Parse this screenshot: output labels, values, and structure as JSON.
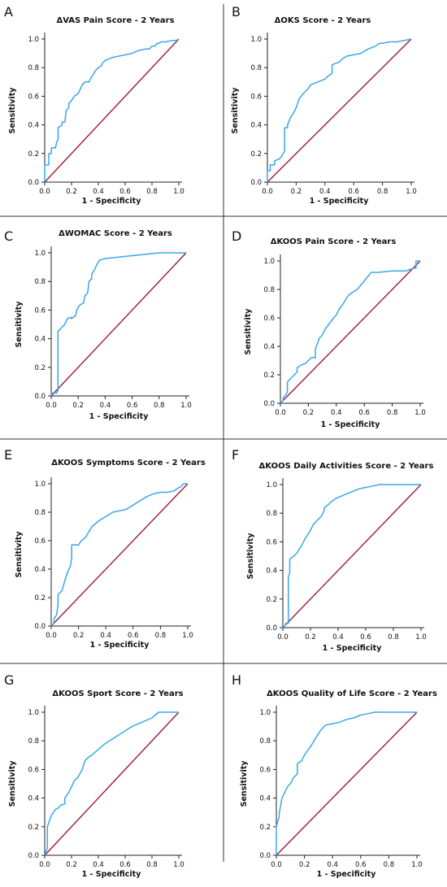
{
  "colors": {
    "roc_curve": "#3aa7e8",
    "reference_line": "#a0173d",
    "axis": "#222222",
    "divider": "#333333"
  },
  "chart_data": [
    {
      "panel": "A",
      "type": "line",
      "title": "ΔVAS Pain Score - 2 Years",
      "xlabel": "1 - Specificity",
      "ylabel": "Sensitivity",
      "xlim": [
        0,
        1
      ],
      "ylim": [
        0,
        1
      ],
      "xticks": [
        "0.0",
        "0.2",
        "0.4",
        "0.6",
        "0.8",
        "1.0"
      ],
      "yticks": [
        "0.0",
        "0.2",
        "0.4",
        "0.6",
        "0.8",
        "1.0"
      ],
      "series": [
        {
          "x": [
            0,
            0,
            0.03,
            0.03,
            0.05,
            0.05,
            0.08,
            0.09,
            0.1,
            0.1,
            0.13,
            0.13,
            0.15,
            0.16,
            0.18,
            0.18,
            0.2,
            0.22,
            0.25,
            0.27,
            0.28,
            0.3,
            0.33,
            0.34,
            0.36,
            0.38,
            0.4,
            0.42,
            0.43,
            0.45,
            0.5,
            0.55,
            0.6,
            0.65,
            0.7,
            0.75,
            0.78,
            0.8,
            0.82,
            0.84,
            0.85,
            0.87,
            0.9,
            0.95,
            0.98,
            1
          ],
          "y": [
            0,
            0.12,
            0.12,
            0.2,
            0.2,
            0.24,
            0.24,
            0.28,
            0.3,
            0.38,
            0.4,
            0.42,
            0.42,
            0.5,
            0.52,
            0.55,
            0.57,
            0.6,
            0.62,
            0.66,
            0.68,
            0.7,
            0.7,
            0.72,
            0.75,
            0.78,
            0.8,
            0.81,
            0.83,
            0.85,
            0.87,
            0.88,
            0.89,
            0.9,
            0.92,
            0.93,
            0.93,
            0.95,
            0.95,
            0.97,
            0.97,
            0.98,
            0.98,
            0.99,
            0.99,
            1
          ]
        },
        {
          "x": [
            0,
            1
          ],
          "y": [
            0,
            1
          ]
        }
      ]
    },
    {
      "panel": "B",
      "type": "line",
      "title": "ΔOKS Score - 2 Years",
      "xlabel": "1 - Specificity",
      "ylabel": "Sensitivity",
      "xlim": [
        0,
        1
      ],
      "ylim": [
        0,
        1
      ],
      "xticks": [
        "0.0",
        "0.2",
        "0.4",
        "0.6",
        "0.8",
        "1.0"
      ],
      "yticks": [
        "0.0",
        "0.2",
        "0.4",
        "0.6",
        "0.8",
        "1.0"
      ],
      "series": [
        {
          "x": [
            0,
            0,
            0.02,
            0.02,
            0.05,
            0.05,
            0.08,
            0.1,
            0.12,
            0.12,
            0.14,
            0.14,
            0.16,
            0.18,
            0.2,
            0.22,
            0.25,
            0.28,
            0.3,
            0.35,
            0.4,
            0.42,
            0.45,
            0.45,
            0.5,
            0.52,
            0.55,
            0.6,
            0.65,
            0.7,
            0.75,
            0.78,
            0.8,
            0.85,
            0.9,
            0.95,
            1
          ],
          "y": [
            0,
            0.08,
            0.08,
            0.12,
            0.12,
            0.15,
            0.16,
            0.18,
            0.22,
            0.38,
            0.38,
            0.4,
            0.45,
            0.48,
            0.52,
            0.58,
            0.62,
            0.65,
            0.68,
            0.7,
            0.72,
            0.74,
            0.76,
            0.82,
            0.84,
            0.86,
            0.88,
            0.89,
            0.9,
            0.93,
            0.95,
            0.97,
            0.97,
            0.98,
            0.98,
            0.99,
            1
          ]
        },
        {
          "x": [
            0,
            1
          ],
          "y": [
            0,
            1
          ]
        }
      ]
    },
    {
      "panel": "C",
      "type": "line",
      "title": "ΔWOMAC Score - 2 Years",
      "xlabel": "1 - Specificity",
      "ylabel": "Sensitivity",
      "xlim": [
        0,
        1
      ],
      "ylim": [
        0,
        1
      ],
      "xticks": [
        "0.0",
        "0.2",
        "0.4",
        "0.6",
        "0.8",
        "1.0"
      ],
      "yticks": [
        "0.0",
        "0.2",
        "0.4",
        "0.6",
        "0.8",
        "1.0"
      ],
      "series": [
        {
          "x": [
            0,
            0,
            0.04,
            0.05,
            0.05,
            0.08,
            0.1,
            0.12,
            0.15,
            0.15,
            0.18,
            0.19,
            0.2,
            0.22,
            0.24,
            0.25,
            0.27,
            0.28,
            0.3,
            0.3,
            0.32,
            0.34,
            0.36,
            0.4,
            0.5,
            0.6,
            0.7,
            0.8,
            0.9,
            1
          ],
          "y": [
            0,
            0.02,
            0.02,
            0.04,
            0.45,
            0.48,
            0.5,
            0.54,
            0.55,
            0.54,
            0.56,
            0.6,
            0.62,
            0.64,
            0.65,
            0.7,
            0.72,
            0.8,
            0.82,
            0.85,
            0.88,
            0.92,
            0.95,
            0.96,
            0.97,
            0.98,
            0.99,
            1,
            1,
            1
          ]
        },
        {
          "x": [
            0,
            1
          ],
          "y": [
            0,
            1
          ]
        }
      ]
    },
    {
      "panel": "D",
      "type": "line",
      "title": "ΔKOOS Pain Score - 2 Years",
      "xlabel": "1 - Specificity",
      "ylabel": "Sensitivity",
      "xlim": [
        0,
        1
      ],
      "ylim": [
        0,
        1
      ],
      "xticks": [
        "0.0",
        "0.2",
        "0.4",
        "0.6",
        "0.8",
        "1.0"
      ],
      "yticks": [
        "0.0",
        "0.2",
        "0.4",
        "0.6",
        "0.8",
        "1.0"
      ],
      "series": [
        {
          "x": [
            0,
            0.02,
            0.02,
            0.04,
            0.05,
            0.05,
            0.08,
            0.1,
            0.12,
            0.12,
            0.15,
            0.18,
            0.2,
            0.22,
            0.25,
            0.25,
            0.28,
            0.3,
            0.32,
            0.35,
            0.38,
            0.4,
            0.42,
            0.45,
            0.48,
            0.5,
            0.55,
            0.6,
            0.65,
            0.7,
            0.8,
            0.9,
            0.95,
            0.97,
            0.97,
            1
          ],
          "y": [
            0,
            0.02,
            0.04,
            0.06,
            0.08,
            0.15,
            0.18,
            0.2,
            0.22,
            0.25,
            0.27,
            0.28,
            0.3,
            0.32,
            0.32,
            0.38,
            0.46,
            0.48,
            0.52,
            0.56,
            0.6,
            0.62,
            0.66,
            0.7,
            0.75,
            0.77,
            0.8,
            0.86,
            0.92,
            0.92,
            0.93,
            0.93,
            0.95,
            0.95,
            1,
            1
          ]
        },
        {
          "x": [
            0,
            1
          ],
          "y": [
            0,
            1
          ]
        }
      ]
    },
    {
      "panel": "E",
      "type": "line",
      "title": "ΔKOOS Symptoms Score - 2 Years",
      "xlabel": "1 - Specificity",
      "ylabel": "Sensitivity",
      "xlim": [
        0,
        1
      ],
      "ylim": [
        0,
        1
      ],
      "xticks": [
        "0.0",
        "0.2",
        "0.4",
        "0.6",
        "0.8",
        "1.0"
      ],
      "yticks": [
        "0.0",
        "0.2",
        "0.4",
        "0.6",
        "0.8",
        "1.0"
      ],
      "series": [
        {
          "x": [
            0,
            0.02,
            0.02,
            0.04,
            0.05,
            0.05,
            0.08,
            0.1,
            0.12,
            0.14,
            0.15,
            0.15,
            0.2,
            0.22,
            0.25,
            0.28,
            0.3,
            0.35,
            0.4,
            0.45,
            0.5,
            0.55,
            0.6,
            0.65,
            0.7,
            0.75,
            0.8,
            0.85,
            0.9,
            0.93,
            0.95,
            0.97,
            1
          ],
          "y": [
            0,
            0.02,
            0.05,
            0.08,
            0.15,
            0.22,
            0.25,
            0.32,
            0.38,
            0.42,
            0.48,
            0.57,
            0.57,
            0.6,
            0.62,
            0.67,
            0.7,
            0.74,
            0.77,
            0.8,
            0.81,
            0.82,
            0.85,
            0.88,
            0.91,
            0.93,
            0.94,
            0.94,
            0.95,
            0.97,
            0.98,
            1,
            1
          ]
        },
        {
          "x": [
            0,
            1
          ],
          "y": [
            0,
            1
          ]
        }
      ]
    },
    {
      "panel": "F",
      "type": "line",
      "title": "ΔKOOS Daily Activities Score - 2 Years",
      "xlabel": "1 - Specificity",
      "ylabel": "Sensitivity",
      "xlim": [
        0,
        1
      ],
      "ylim": [
        0,
        1
      ],
      "xticks": [
        "0.0",
        "0.2",
        "0.4",
        "0.6",
        "0.8",
        "1.0"
      ],
      "yticks": [
        "0.0",
        "0.2",
        "0.4",
        "0.6",
        "0.8",
        "1.0"
      ],
      "series": [
        {
          "x": [
            0,
            0.02,
            0.02,
            0.04,
            0.04,
            0.05,
            0.05,
            0.08,
            0.1,
            0.12,
            0.14,
            0.16,
            0.18,
            0.2,
            0.22,
            0.25,
            0.28,
            0.3,
            0.3,
            0.33,
            0.35,
            0.38,
            0.4,
            0.45,
            0.5,
            0.55,
            0.6,
            0.65,
            0.7,
            0.8,
            0.9,
            1
          ],
          "y": [
            0,
            0.02,
            0.03,
            0.03,
            0.36,
            0.38,
            0.48,
            0.5,
            0.52,
            0.55,
            0.58,
            0.62,
            0.65,
            0.68,
            0.72,
            0.75,
            0.78,
            0.82,
            0.84,
            0.86,
            0.88,
            0.9,
            0.91,
            0.93,
            0.95,
            0.97,
            0.98,
            0.99,
            1,
            1,
            1,
            1
          ]
        },
        {
          "x": [
            0,
            1
          ],
          "y": [
            0,
            1
          ]
        }
      ]
    },
    {
      "panel": "G",
      "type": "line",
      "title": "ΔKOOS Sport Score - 2 Years",
      "xlabel": "1 - Specificity",
      "ylabel": "Sensitivity",
      "xlim": [
        0,
        1
      ],
      "ylim": [
        0,
        1
      ],
      "xticks": [
        "0.0",
        "0.2",
        "0.4",
        "0.6",
        "0.8",
        "1.0"
      ],
      "yticks": [
        "0.0",
        "0.2",
        "0.4",
        "0.6",
        "0.8",
        "1.0"
      ],
      "series": [
        {
          "x": [
            0,
            0.02,
            0.02,
            0.05,
            0.08,
            0.1,
            0.12,
            0.15,
            0.15,
            0.18,
            0.2,
            0.22,
            0.25,
            0.28,
            0.3,
            0.32,
            0.35,
            0.4,
            0.45,
            0.5,
            0.55,
            0.6,
            0.65,
            0.7,
            0.75,
            0.8,
            0.85,
            0.9,
            1
          ],
          "y": [
            0,
            0.05,
            0.2,
            0.28,
            0.32,
            0.33,
            0.35,
            0.36,
            0.4,
            0.44,
            0.48,
            0.52,
            0.55,
            0.6,
            0.66,
            0.68,
            0.7,
            0.74,
            0.78,
            0.81,
            0.84,
            0.87,
            0.9,
            0.92,
            0.94,
            0.96,
            1,
            1,
            1
          ]
        },
        {
          "x": [
            0,
            1
          ],
          "y": [
            0,
            1
          ]
        }
      ]
    },
    {
      "panel": "H",
      "type": "line",
      "title": "ΔKOOS Quality of Life Score - 2 Years",
      "xlabel": "1 - Specificity",
      "ylabel": "Sensitivity",
      "xlim": [
        0,
        1
      ],
      "ylim": [
        0,
        1
      ],
      "xticks": [
        "0.0",
        "0.2",
        "0.4",
        "0.6",
        "0.8",
        "1.0"
      ],
      "yticks": [
        "0.0",
        "0.2",
        "0.4",
        "0.6",
        "0.8",
        "1.0"
      ],
      "series": [
        {
          "x": [
            0,
            0,
            0.02,
            0.02,
            0.04,
            0.06,
            0.08,
            0.1,
            0.12,
            0.15,
            0.15,
            0.18,
            0.2,
            0.22,
            0.25,
            0.28,
            0.3,
            0.32,
            0.35,
            0.4,
            0.45,
            0.5,
            0.55,
            0.6,
            0.65,
            0.7,
            0.75,
            0.8,
            0.9,
            1
          ],
          "y": [
            0,
            0.2,
            0.27,
            0.29,
            0.4,
            0.44,
            0.48,
            0.5,
            0.54,
            0.57,
            0.64,
            0.66,
            0.7,
            0.73,
            0.77,
            0.82,
            0.85,
            0.88,
            0.91,
            0.92,
            0.93,
            0.95,
            0.96,
            0.98,
            0.99,
            1,
            1,
            1,
            1,
            1
          ]
        },
        {
          "x": [
            0,
            1
          ],
          "y": [
            0,
            1
          ]
        }
      ]
    }
  ]
}
